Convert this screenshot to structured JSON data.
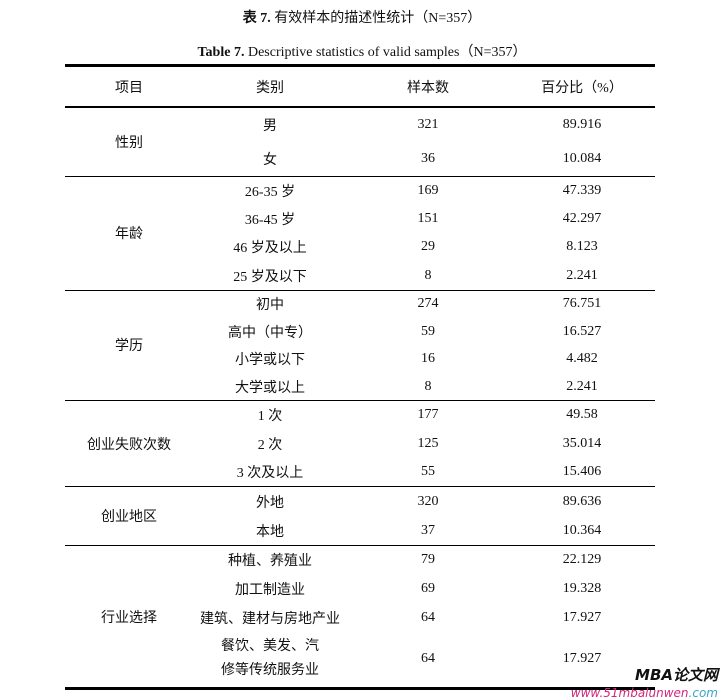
{
  "caption_cn": {
    "prefix": "表 7.",
    "text": "有效样本的描述性统计（N=357）"
  },
  "caption_en": {
    "prefix": "Table 7.",
    "text": "Descriptive statistics of valid samples（N=357）"
  },
  "headers": [
    "项目",
    "类别",
    "样本数",
    "百分比（%）"
  ],
  "groups": [
    {
      "item": "性别",
      "rows": [
        {
          "category": "男",
          "n": "321",
          "pct": "89.916"
        },
        {
          "category": "女",
          "n": "36",
          "pct": "10.084"
        }
      ]
    },
    {
      "item": "年龄",
      "rows": [
        {
          "category": "26-35 岁",
          "n": "169",
          "pct": "47.339"
        },
        {
          "category": "36-45 岁",
          "n": "151",
          "pct": "42.297"
        },
        {
          "category": "46 岁及以上",
          "n": "29",
          "pct": "8.123"
        },
        {
          "category": "25 岁及以下",
          "n": "8",
          "pct": "2.241"
        }
      ]
    },
    {
      "item": "学历",
      "rows": [
        {
          "category": "初中",
          "n": "274",
          "pct": "76.751"
        },
        {
          "category": "高中（中专）",
          "n": "59",
          "pct": "16.527"
        },
        {
          "category": "小学或以下",
          "n": "16",
          "pct": "4.482"
        },
        {
          "category": "大学或以上",
          "n": "8",
          "pct": "2.241"
        }
      ]
    },
    {
      "item": "创业失败次数",
      "rows": [
        {
          "category": "1 次",
          "n": "177",
          "pct": "49.58"
        },
        {
          "category": "2 次",
          "n": "125",
          "pct": "35.014"
        },
        {
          "category": "3 次及以上",
          "n": "55",
          "pct": "15.406"
        }
      ]
    },
    {
      "item": "创业地区",
      "rows": [
        {
          "category": "外地",
          "n": "320",
          "pct": "89.636"
        },
        {
          "category": "本地",
          "n": "37",
          "pct": "10.364"
        }
      ]
    },
    {
      "item": "行业选择",
      "rows": [
        {
          "category": "种植、养殖业",
          "n": "79",
          "pct": "22.129"
        },
        {
          "category": "加工制造业",
          "n": "69",
          "pct": "19.328"
        },
        {
          "category": "建筑、建材与房地产业",
          "n": "64",
          "pct": "17.927"
        },
        {
          "category": "餐饮、美发、汽修等传统服务业",
          "n": "64",
          "pct": "17.927"
        }
      ]
    }
  ],
  "watermark": {
    "line1": "MBA论文网",
    "line2a": "www.51mbalunwen",
    "line2b": ".com"
  }
}
